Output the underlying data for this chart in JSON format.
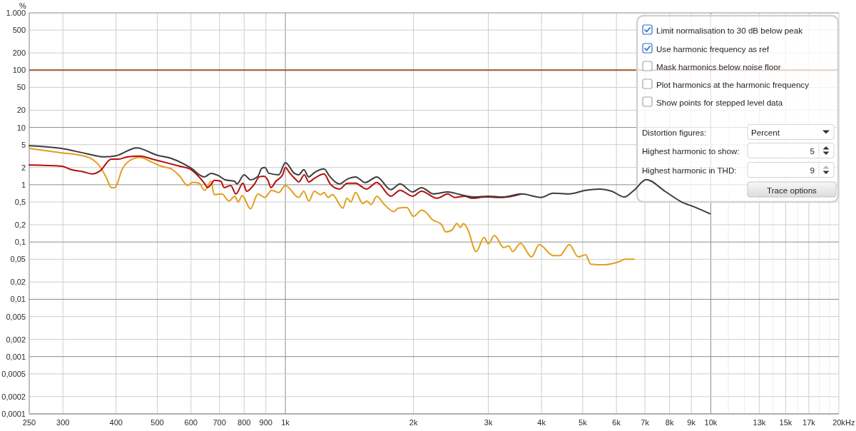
{
  "chart_data": {
    "type": "line",
    "ylabel": "%",
    "xlabel": "Hz",
    "log": "xy",
    "grid": true,
    "xlim": [
      250,
      20000
    ],
    "xticks": [
      250,
      300,
      400,
      500,
      600,
      700,
      800,
      900,
      {
        "value": 1000,
        "label": "1k"
      },
      {
        "value": 2000,
        "label": "2k"
      },
      {
        "value": 3000,
        "label": "3k"
      },
      {
        "value": 4000,
        "label": "4k"
      },
      {
        "value": 5000,
        "label": "5k"
      },
      {
        "value": 6000,
        "label": "6k"
      },
      {
        "value": 7000,
        "label": "7k"
      },
      {
        "value": 8000,
        "label": "8k"
      },
      {
        "value": 9000,
        "label": "9k"
      },
      {
        "value": 10000,
        "label": "10k"
      },
      {
        "value": 11000,
        "label": null
      },
      {
        "value": 12000,
        "label": null
      },
      {
        "value": 13000,
        "label": "13k"
      },
      {
        "value": 14000,
        "label": null
      },
      {
        "value": 15000,
        "label": "15k"
      },
      {
        "value": 16000,
        "label": null
      },
      {
        "value": 17000,
        "label": "17k"
      },
      {
        "value": 18000,
        "label": null
      },
      {
        "value": 19000,
        "label": null
      },
      {
        "value": 20000,
        "label": "20k"
      }
    ],
    "ylim": [
      0.0001,
      1000
    ],
    "yticks": [
      {
        "value": 0.0001,
        "label": "0,0001"
      },
      {
        "value": 0.0002,
        "label": "0,0002"
      },
      {
        "value": 0.0005,
        "label": "0,0005"
      },
      {
        "value": 0.001,
        "label": "0,001"
      },
      {
        "value": 0.002,
        "label": "0,002"
      },
      {
        "value": 0.005,
        "label": "0,005"
      },
      {
        "value": 0.01,
        "label": "0,01"
      },
      {
        "value": 0.02,
        "label": "0,02"
      },
      {
        "value": 0.05,
        "label": "0,05"
      },
      {
        "value": 0.1,
        "label": "0,1"
      },
      {
        "value": 0.2,
        "label": "0,2"
      },
      {
        "value": 0.5,
        "label": "0,5"
      },
      1,
      2,
      5,
      10,
      20,
      50,
      100,
      200,
      500,
      {
        "value": 1000,
        "label": "1.000"
      }
    ],
    "ref_lines": [
      {
        "axis": "y",
        "value": 100,
        "color": "#a0582a"
      }
    ],
    "series": [
      {
        "color": "#e39e1b",
        "x": [
          250,
          298,
          327,
          348,
          366,
          380,
          390,
          397,
          414,
          437,
          455,
          484,
          511,
          538,
          565,
          589,
          605,
          627,
          646,
          669,
          680,
          709,
          737,
          760,
          775,
          791,
          828,
          862,
          895,
          928,
          965,
          1000,
          1075,
          1105,
          1135,
          1170,
          1210,
          1233,
          1260,
          1290,
          1365,
          1395,
          1425,
          1462,
          1520,
          1555,
          1590,
          1640,
          1700,
          1800,
          1840,
          1930,
          2000,
          2090,
          2140,
          2210,
          2330,
          2380,
          2460,
          2530,
          2580,
          2620,
          2680,
          2810,
          2930,
          3000,
          3100,
          3260,
          3350,
          3420,
          3570,
          3790,
          3950,
          4260,
          4420,
          4650,
          4880,
          5080,
          5220,
          5600,
          6070,
          6300,
          6600
        ],
        "values": [
          4.3,
          3.6,
          3.3,
          2.9,
          2.1,
          1.3,
          0.89,
          0.89,
          1.9,
          2.8,
          3.0,
          2.5,
          2.1,
          1.9,
          1.4,
          0.97,
          1.1,
          1.06,
          0.8,
          1.15,
          0.67,
          0.69,
          0.52,
          0.63,
          0.5,
          0.65,
          0.38,
          0.69,
          0.6,
          0.8,
          0.73,
          0.97,
          0.6,
          0.77,
          0.52,
          0.77,
          0.67,
          0.73,
          0.6,
          0.67,
          0.39,
          0.58,
          0.5,
          0.73,
          0.47,
          0.52,
          0.45,
          0.63,
          0.47,
          0.34,
          0.39,
          0.4,
          0.28,
          0.36,
          0.33,
          0.25,
          0.2,
          0.15,
          0.16,
          0.21,
          0.18,
          0.21,
          0.17,
          0.068,
          0.12,
          0.093,
          0.13,
          0.08,
          0.085,
          0.068,
          0.095,
          0.055,
          0.09,
          0.058,
          0.058,
          0.09,
          0.055,
          0.06,
          0.041,
          0.04,
          0.045,
          0.05,
          0.05
        ]
      },
      {
        "color": "#b50d0d",
        "x": [
          250,
          298,
          314,
          335,
          352,
          366,
          390,
          405,
          426,
          455,
          492,
          524,
          565,
          597,
          620,
          645,
          656,
          672,
          680,
          705,
          718,
          744,
          765,
          795,
          811,
          846,
          868,
          890,
          910,
          925,
          950,
          985,
          1000,
          1025,
          1060,
          1075,
          1108,
          1135,
          1170,
          1233,
          1275,
          1340,
          1400,
          1462,
          1550,
          1640,
          1770,
          1860,
          1990,
          2090,
          2270,
          2410,
          2500,
          2640,
          2740,
          2960,
          3240,
          3590
        ],
        "values": [
          2.2,
          2.1,
          1.83,
          1.68,
          1.54,
          1.72,
          2.8,
          2.8,
          3.06,
          3.15,
          2.73,
          2.43,
          2.1,
          1.88,
          1.49,
          1.06,
          0.89,
          1.06,
          1.19,
          1.15,
          0.89,
          0.97,
          0.69,
          1.06,
          0.77,
          1.03,
          1.37,
          1.41,
          1.19,
          0.89,
          1.15,
          1.49,
          1.99,
          1.58,
          1.22,
          1.12,
          1.49,
          1.12,
          1.29,
          1.54,
          1.03,
          0.84,
          1.06,
          1.06,
          0.84,
          1.09,
          0.63,
          0.8,
          0.63,
          0.77,
          0.58,
          0.69,
          0.6,
          0.63,
          0.58,
          0.61,
          0.6,
          0.69
        ]
      },
      {
        "color": "#3c3c3c",
        "x": [
          250,
          298,
          340,
          376,
          400,
          447,
          498,
          538,
          597,
          645,
          669,
          695,
          722,
          760,
          769,
          800,
          828,
          862,
          880,
          895,
          915,
          965,
          1000,
          1050,
          1075,
          1105,
          1135,
          1170,
          1233,
          1270,
          1340,
          1400,
          1462,
          1540,
          1640,
          1770,
          1860,
          1990,
          2090,
          2230,
          2410,
          2580,
          2780,
          3000,
          3240,
          3590,
          3990,
          4260,
          4650,
          5080,
          5470,
          5850,
          6260,
          6600,
          7050,
          7800,
          8540,
          9140,
          9960
        ],
        "values": [
          4.8,
          4.3,
          3.5,
          3.06,
          3.2,
          4.4,
          3.3,
          2.9,
          2.0,
          1.37,
          1.58,
          1.45,
          1.22,
          1.15,
          1.03,
          1.49,
          1.22,
          1.41,
          1.93,
          1.99,
          1.58,
          1.49,
          2.43,
          1.58,
          1.49,
          1.83,
          1.37,
          1.63,
          1.88,
          1.41,
          1.03,
          1.26,
          1.37,
          1.09,
          1.37,
          0.82,
          1.03,
          0.75,
          0.89,
          0.69,
          0.75,
          0.67,
          0.61,
          0.63,
          0.61,
          0.69,
          0.6,
          0.71,
          0.69,
          0.8,
          0.84,
          0.77,
          0.61,
          0.8,
          1.23,
          0.77,
          0.5,
          0.41,
          0.31
        ]
      }
    ],
    "annotations": [
      "Limit normalisation to 30 dB below peak",
      "Use harmonic frequency as ref",
      "Mask harmonics below noise floor",
      "Plot harmonics at the harmonic frequency",
      "Show points for stepped level data",
      "Distortion figures:",
      "Percent",
      "Highest harmonic to show:",
      "5",
      "Highest harmonic in THD:",
      "9",
      "Trace options"
    ]
  }
}
